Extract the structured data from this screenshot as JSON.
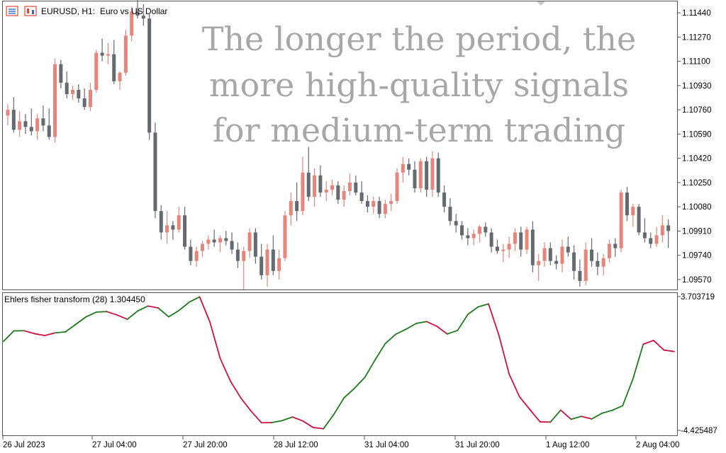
{
  "header": {
    "symbol_label": "EURUSD, H1:",
    "symbol_description": "Euro vs US Dollar"
  },
  "overlay_text": {
    "lines": [
      "The longer the period, the",
      "more high-quality signals",
      "for medium-term trading"
    ]
  },
  "indicator": {
    "label": "Ehlers fisher transform (28) 1.304450"
  },
  "colors": {
    "bull_candle": "#e8857a",
    "bear_candle": "#646a70",
    "fisher_rising": "#1b7d1b",
    "fisher_falling": "#cf1243",
    "overlay_text": "#a7a7a7",
    "frame": "#555555"
  },
  "chart_data": [
    {
      "type": "candlestick",
      "title": "EURUSD, H1:",
      "subtitle": "Euro vs US Dollar",
      "ylim": [
        1.095,
        1.1152
      ],
      "y_ticks": [
        "1.11440",
        "1.11270",
        "1.11100",
        "1.10930",
        "1.10760",
        "1.10590",
        "1.10420",
        "1.10250",
        "1.10080",
        "1.09910",
        "1.09740",
        "1.09570"
      ],
      "x_ticks": [
        "26 Jul 2023",
        "27 Jul 04:00",
        "27 Jul 20:00",
        "28 Jul 12:00",
        "31 Jul 04:00",
        "31 Jul 20:00",
        "1 Aug 12:00",
        "2 Aug 04:00"
      ],
      "candles": [
        [
          1.1072,
          1.108,
          1.1065,
          1.1076
        ],
        [
          1.1076,
          1.1085,
          1.106,
          1.1062
        ],
        [
          1.1062,
          1.1075,
          1.1057,
          1.1068
        ],
        [
          1.1068,
          1.1073,
          1.1059,
          1.1064
        ],
        [
          1.1064,
          1.1077,
          1.1058,
          1.1061
        ],
        [
          1.1061,
          1.1073,
          1.1055,
          1.107
        ],
        [
          1.107,
          1.1079,
          1.1061,
          1.1065
        ],
        [
          1.1065,
          1.1077,
          1.1055,
          1.1057
        ],
        [
          1.1057,
          1.1112,
          1.1053,
          1.1108
        ],
        [
          1.1108,
          1.1111,
          1.1091,
          1.1095
        ],
        [
          1.1095,
          1.1103,
          1.1084,
          1.1087
        ],
        [
          1.1087,
          1.1093,
          1.1083,
          1.109
        ],
        [
          1.109,
          1.1094,
          1.1081,
          1.1084
        ],
        [
          1.1084,
          1.1091,
          1.1076,
          1.1078
        ],
        [
          1.1078,
          1.1095,
          1.1075,
          1.109
        ],
        [
          1.109,
          1.1118,
          1.1088,
          1.1116
        ],
        [
          1.1116,
          1.1126,
          1.111,
          1.1114
        ],
        [
          1.1114,
          1.1123,
          1.1108,
          1.1115
        ],
        [
          1.1115,
          1.1125,
          1.1094,
          1.1096
        ],
        [
          1.1096,
          1.1103,
          1.109,
          1.1102
        ],
        [
          1.1102,
          1.1132,
          1.11,
          1.1128
        ],
        [
          1.1128,
          1.1148,
          1.1124,
          1.1145
        ],
        [
          1.1145,
          1.1155,
          1.114,
          1.1142
        ],
        [
          1.1142,
          1.115,
          1.1135,
          1.114
        ],
        [
          1.114,
          1.1143,
          1.1055,
          1.106
        ],
        [
          1.106,
          1.1067,
          1.1,
          1.1005
        ],
        [
          1.1005,
          1.1009,
          1.0985,
          1.099
        ],
        [
          1.099,
          1.1005,
          1.0982,
          1.0995
        ],
        [
          1.0995,
          1.0998,
          1.0985,
          1.0992
        ],
        [
          1.0992,
          1.1008,
          1.099,
          1.1002
        ],
        [
          1.1002,
          1.1008,
          1.0978,
          1.098
        ],
        [
          1.098,
          1.0985,
          1.0967,
          1.097
        ],
        [
          1.097,
          1.098,
          1.0966,
          1.0977
        ],
        [
          1.0977,
          1.0984,
          1.0973,
          1.0982
        ],
        [
          1.0982,
          1.0988,
          1.0978,
          1.0985
        ],
        [
          1.0985,
          1.0992,
          1.098,
          1.0983
        ],
        [
          1.0983,
          1.0988,
          1.0976,
          1.0986
        ],
        [
          1.0986,
          1.0991,
          1.0981,
          1.0984
        ],
        [
          1.0984,
          1.099,
          1.0975,
          1.0978
        ],
        [
          1.0978,
          1.0983,
          1.0965,
          1.097
        ],
        [
          1.097,
          1.098,
          1.095,
          1.0977
        ],
        [
          1.0977,
          1.0993,
          1.0972,
          1.099
        ],
        [
          1.099,
          1.0993,
          1.0968,
          1.0973
        ],
        [
          1.0973,
          1.0982,
          1.0957,
          1.096
        ],
        [
          1.096,
          1.0982,
          1.0952,
          1.0978
        ],
        [
          1.0978,
          1.0988,
          1.096,
          1.0963
        ],
        [
          1.0963,
          1.0978,
          1.0957,
          1.0972
        ],
        [
          1.0972,
          1.1005,
          1.097,
          1.1002
        ],
        [
          1.1002,
          1.1018,
          1.0995,
          1.1012
        ],
        [
          1.1012,
          1.1025,
          1.0998,
          1.1005
        ],
        [
          1.1005,
          1.1043,
          1.1002,
          1.1032
        ],
        [
          1.1032,
          1.105,
          1.1012,
          1.1015
        ],
        [
          1.1015,
          1.1035,
          1.1008,
          1.103
        ],
        [
          1.103,
          1.1037,
          1.1015,
          1.1018
        ],
        [
          1.1018,
          1.1026,
          1.1012,
          1.102
        ],
        [
          1.102,
          1.1027,
          1.1016,
          1.1023
        ],
        [
          1.1023,
          1.1026,
          1.101,
          1.1013
        ],
        [
          1.1013,
          1.1023,
          1.1008,
          1.1019
        ],
        [
          1.1019,
          1.1031,
          1.1016,
          1.1025
        ],
        [
          1.1025,
          1.103,
          1.1016,
          1.1018
        ],
        [
          1.1018,
          1.1026,
          1.101,
          1.1012
        ],
        [
          1.1012,
          1.1016,
          1.1004,
          1.1008
        ],
        [
          1.1008,
          1.1015,
          1.1003,
          1.1012
        ],
        [
          1.1012,
          1.1015,
          1.1,
          1.1003
        ],
        [
          1.1003,
          1.1013,
          1.1,
          1.101
        ],
        [
          1.101,
          1.1017,
          1.1005,
          1.1012
        ],
        [
          1.1012,
          1.1035,
          1.101,
          1.1032
        ],
        [
          1.1032,
          1.1043,
          1.1025,
          1.1038
        ],
        [
          1.1038,
          1.1042,
          1.103,
          1.1034
        ],
        [
          1.1034,
          1.104,
          1.1018,
          1.1021
        ],
        [
          1.1021,
          1.1042,
          1.1018,
          1.104
        ],
        [
          1.104,
          1.1043,
          1.1015,
          1.102
        ],
        [
          1.102,
          1.1047,
          1.1015,
          1.1042
        ],
        [
          1.1042,
          1.1046,
          1.1015,
          1.1018
        ],
        [
          1.1018,
          1.1023,
          1.1004,
          1.1008
        ],
        [
          1.1008,
          1.1014,
          1.0995,
          1.0998
        ],
        [
          1.0998,
          1.1003,
          1.099,
          1.0995
        ],
        [
          1.0995,
          1.0998,
          1.0985,
          1.0988
        ],
        [
          1.0988,
          1.0993,
          1.0981,
          1.0986
        ],
        [
          1.0986,
          1.0992,
          1.0981,
          1.0989
        ],
        [
          1.0989,
          1.0995,
          1.0983,
          1.0994
        ],
        [
          1.0994,
          1.0997,
          1.0987,
          1.099
        ],
        [
          1.099,
          1.0993,
          1.0976,
          1.098
        ],
        [
          1.098,
          1.0985,
          1.0975,
          1.0977
        ],
        [
          1.0977,
          1.0982,
          1.0969,
          1.0978
        ],
        [
          1.0978,
          1.0987,
          1.0972,
          1.0982
        ],
        [
          1.0982,
          1.0993,
          1.0977,
          1.099
        ],
        [
          1.099,
          1.0994,
          1.0973,
          1.0978
        ],
        [
          1.0978,
          1.0994,
          1.0975,
          1.0992
        ],
        [
          1.0992,
          1.0998,
          1.0962,
          1.0967
        ],
        [
          1.0967,
          1.0975,
          1.0956,
          1.097
        ],
        [
          1.097,
          1.0983,
          1.0966,
          1.0979
        ],
        [
          1.0979,
          1.0983,
          1.0967,
          1.097
        ],
        [
          1.097,
          1.0974,
          1.0964,
          1.0968
        ],
        [
          1.0968,
          1.0985,
          1.0962,
          1.098
        ],
        [
          1.098,
          1.0987,
          1.0973,
          1.0976
        ],
        [
          1.0976,
          1.0981,
          1.0957,
          1.0963
        ],
        [
          1.0963,
          1.0971,
          1.0952,
          1.0956
        ],
        [
          1.0956,
          1.0983,
          1.0953,
          1.0978
        ],
        [
          1.0978,
          1.0986,
          1.0966,
          1.097
        ],
        [
          1.097,
          1.0976,
          1.096,
          1.0966
        ],
        [
          1.0966,
          1.0975,
          1.096,
          1.0972
        ],
        [
          1.0972,
          1.0985,
          1.0969,
          1.0982
        ],
        [
          1.0982,
          1.0986,
          1.0973,
          1.0979
        ],
        [
          1.0979,
          1.102,
          1.0976,
          1.1018
        ],
        [
          1.1018,
          1.1022,
          1.0998,
          1.1002
        ],
        [
          1.1002,
          1.101,
          1.0994,
          1.1008
        ],
        [
          1.1008,
          1.101,
          1.0988,
          1.099
        ],
        [
          1.099,
          1.1,
          1.0983,
          1.0986
        ],
        [
          1.0986,
          1.099,
          1.0979,
          1.0982
        ],
        [
          1.0982,
          1.0994,
          1.098,
          1.0988
        ],
        [
          1.0988,
          1.1002,
          1.0983,
          1.0995
        ],
        [
          1.0995,
          1.0999,
          1.0979,
          1.0991
        ]
      ]
    },
    {
      "type": "line",
      "title": "Ehlers fisher transform (28) 1.304450",
      "ylim": [
        -4.425487,
        3.703719
      ],
      "y_ticks": [
        "3.703719",
        "-4.425487"
      ],
      "x_ticks": [
        "26 Jul 2023",
        "27 Jul 04:00",
        "27 Jul 20:00",
        "28 Jul 12:00",
        "31 Jul 04:00",
        "31 Jul 20:00",
        "1 Aug 12:00",
        "2 Aug 04:00"
      ],
      "series": [
        {
          "values": [
            1.01,
            1.65,
            1.66,
            1.48,
            1.37,
            1.53,
            1.59,
            2.05,
            2.51,
            2.8,
            2.83,
            2.62,
            2.36,
            2.87,
            3.17,
            3.05,
            2.51,
            2.9,
            3.41,
            3.73,
            2.19,
            -0.04,
            -1.43,
            -2.45,
            -3.26,
            -3.96,
            -3.95,
            -3.83,
            -3.61,
            -3.85,
            -4.25,
            -4.33,
            -3.46,
            -2.44,
            -1.86,
            -1.2,
            -0.13,
            0.88,
            1.44,
            1.75,
            2.11,
            2.22,
            1.93,
            1.46,
            1.68,
            2.66,
            3.12,
            3.3,
            1.4,
            -0.99,
            -2.37,
            -3.15,
            -3.91,
            -3.92,
            -3.19,
            -3.75,
            -3.57,
            -3.73,
            -3.38,
            -3.2,
            -2.92,
            -1.28,
            0.84,
            1.07,
            0.48,
            0.39
          ],
          "segment_colors": [
            "rising",
            "rising",
            "falling",
            "falling",
            "falling",
            "rising",
            "rising",
            "rising",
            "rising",
            "rising",
            "falling",
            "falling",
            "rising",
            "rising",
            "falling",
            "rising",
            "rising",
            "rising",
            "rising",
            "falling",
            "falling",
            "falling",
            "falling",
            "falling",
            "falling",
            "falling",
            "rising",
            "rising",
            "falling",
            "falling",
            "falling",
            "rising",
            "rising",
            "rising",
            "rising",
            "rising",
            "rising",
            "rising",
            "rising",
            "rising",
            "rising",
            "falling",
            "falling",
            "rising",
            "rising",
            "rising",
            "rising",
            "falling",
            "falling",
            "falling",
            "falling",
            "falling",
            "falling",
            "rising",
            "falling",
            "rising",
            "falling",
            "rising",
            "rising",
            "rising",
            "rising",
            "rising",
            "falling",
            "falling",
            "falling"
          ]
        }
      ]
    }
  ]
}
